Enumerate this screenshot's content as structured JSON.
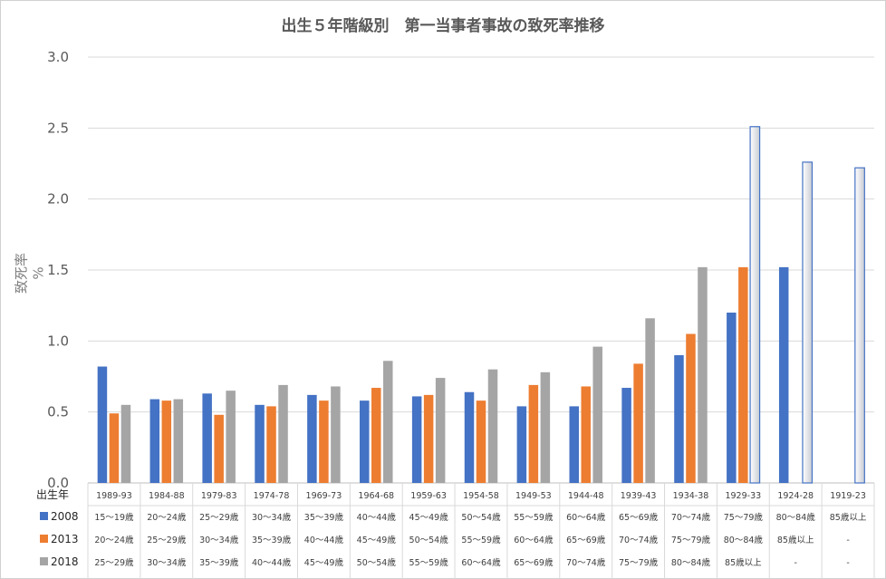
{
  "chart_data": {
    "type": "bar",
    "title": "出生５年階級別　第一当事者事故の致死率推移",
    "ylabel": "致死率　%",
    "ylim": [
      0,
      3.0
    ],
    "yticks": [
      "0.0",
      "0.5",
      "1.0",
      "1.5",
      "2.0",
      "2.5",
      "3.0"
    ],
    "grid": true,
    "categories": [
      "1989-93",
      "1984-88",
      "1979-83",
      "1974-78",
      "1969-73",
      "1964-68",
      "1959-63",
      "1954-58",
      "1949-53",
      "1944-48",
      "1939-43",
      "1934-38",
      "1929-33",
      "1924-28",
      "1919-23"
    ],
    "table_header": "出生年",
    "series": [
      {
        "name": "2008",
        "color": "#4472c4",
        "values": [
          0.82,
          0.59,
          0.63,
          0.55,
          0.62,
          0.58,
          0.61,
          0.64,
          0.54,
          0.54,
          0.67,
          0.9,
          1.2,
          1.52,
          null
        ],
        "ages": [
          "15～19歳",
          "20～24歳",
          "25～29歳",
          "30～34歳",
          "35～39歳",
          "40～44歳",
          "45～49歳",
          "50～54歳",
          "55～59歳",
          "60～64歳",
          "65～69歳",
          "70～74歳",
          "75～79歳",
          "80～84歳",
          "85歳以上"
        ]
      },
      {
        "name": "2013",
        "color": "#ed7d31",
        "values": [
          0.49,
          0.58,
          0.48,
          0.54,
          0.58,
          0.67,
          0.62,
          0.58,
          0.69,
          0.68,
          0.84,
          1.05,
          1.52,
          null,
          null
        ],
        "ages": [
          "20～24歳",
          "25～29歳",
          "30～34歳",
          "35～39歳",
          "40～44歳",
          "45～49歳",
          "50～54歳",
          "55～59歳",
          "60～64歳",
          "65～69歳",
          "70～74歳",
          "75～79歳",
          "80～84歳",
          "85歳以上",
          "-"
        ]
      },
      {
        "name": "2018",
        "color": "#a5a5a5",
        "values": [
          0.55,
          0.59,
          0.65,
          0.69,
          0.68,
          0.86,
          0.74,
          0.8,
          0.78,
          0.96,
          1.16,
          1.52,
          2.51,
          2.26,
          2.22
        ],
        "ages": [
          "25～29歳",
          "30～34歳",
          "35～39歳",
          "40～44歳",
          "45～49歳",
          "50～54歳",
          "55～59歳",
          "60～64歳",
          "65～69歳",
          "70～74歳",
          "75～79歳",
          "80～84歳",
          "85歳以上",
          "-",
          "-"
        ]
      }
    ],
    "highlighted": {
      "series": "2018",
      "categories": [
        "1929-33",
        "1924-28",
        "1919-23"
      ],
      "style": "outline-gradient",
      "stroke": "#4472c4"
    }
  }
}
